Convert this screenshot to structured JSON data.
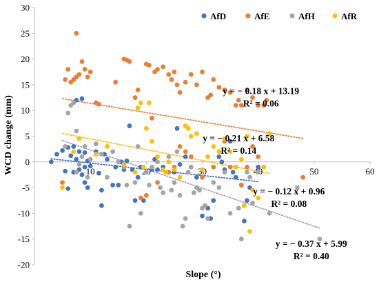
{
  "chart_data": {
    "type": "scatter",
    "xlabel": "Slope (°)",
    "ylabel": "WCD change (mm)",
    "xlim": [
      0,
      60
    ],
    "ylim": [
      -20,
      30
    ],
    "xticks": [
      0,
      10,
      20,
      30,
      40,
      50,
      60
    ],
    "yticks": [
      -20,
      -15,
      -10,
      -5,
      0,
      5,
      10,
      15,
      20,
      25,
      30
    ],
    "grid": false,
    "legend_position": "top-right",
    "series": [
      {
        "name": "AfD",
        "color": "#4472c4",
        "points": [
          [
            3,
            0
          ],
          [
            4,
            1.5
          ],
          [
            5,
            2.2
          ],
          [
            5.5,
            -1.8
          ],
          [
            6,
            2.8
          ],
          [
            6,
            -5.2
          ],
          [
            6.5,
            1.2
          ],
          [
            7,
            3
          ],
          [
            7,
            -2
          ],
          [
            7.5,
            0.5
          ],
          [
            7.5,
            12
          ],
          [
            8,
            2
          ],
          [
            8,
            -1.5
          ],
          [
            8.5,
            -2.5
          ],
          [
            8.5,
            12.3
          ],
          [
            9,
            -4
          ],
          [
            9,
            1.8
          ],
          [
            9,
            -1
          ],
          [
            9.5,
            -5
          ],
          [
            9.5,
            0.2
          ],
          [
            10,
            -0.8
          ],
          [
            11,
            2
          ],
          [
            11.5,
            -2.2
          ],
          [
            12,
            -5.5
          ],
          [
            12,
            -8.5
          ],
          [
            12.5,
            1.5
          ],
          [
            13,
            0.5
          ],
          [
            14,
            -4.5
          ],
          [
            14.5,
            -1
          ],
          [
            15,
            -4.5
          ],
          [
            15.5,
            0
          ],
          [
            16,
            -1.5
          ],
          [
            16.5,
            0.2
          ],
          [
            17,
            7
          ],
          [
            17.5,
            -1.5
          ],
          [
            18,
            -7.5
          ],
          [
            18.5,
            -3
          ],
          [
            19,
            -1
          ],
          [
            19.5,
            -7.5
          ],
          [
            20,
            -2
          ],
          [
            21,
            -1.5
          ],
          [
            21.5,
            0.5
          ],
          [
            22,
            -1.5
          ],
          [
            23,
            -1
          ],
          [
            24,
            -2
          ],
          [
            25,
            -2
          ],
          [
            25.5,
            6.5
          ],
          [
            26,
            -0.5
          ],
          [
            27,
            1
          ],
          [
            28,
            -1
          ],
          [
            29,
            -3
          ],
          [
            30,
            -10.5
          ],
          [
            31,
            -9
          ],
          [
            31.5,
            -11
          ],
          [
            32,
            -7.5
          ],
          [
            33,
            1
          ],
          [
            33.5,
            0
          ],
          [
            34,
            -1.5
          ],
          [
            35,
            4
          ],
          [
            35.5,
            -2
          ],
          [
            36,
            -3
          ],
          [
            37,
            -4.5
          ],
          [
            37.5,
            -11.5
          ],
          [
            38,
            -7.5
          ],
          [
            38.5,
            -5
          ],
          [
            40,
            -1
          ]
        ]
      },
      {
        "name": "AfE",
        "color": "#ed7d31",
        "points": [
          [
            5,
            -4
          ],
          [
            5.5,
            16
          ],
          [
            6,
            18
          ],
          [
            6.5,
            15.5
          ],
          [
            7,
            16
          ],
          [
            7.5,
            25
          ],
          [
            7.5,
            16.5
          ],
          [
            8,
            17
          ],
          [
            8.5,
            19.5
          ],
          [
            9,
            18
          ],
          [
            9.5,
            16.5
          ],
          [
            10,
            17.5
          ],
          [
            11,
            11.5
          ],
          [
            11.5,
            11.2
          ],
          [
            14.5,
            15.5
          ],
          [
            16,
            20
          ],
          [
            16.5,
            19.8
          ],
          [
            17,
            19.5
          ],
          [
            18,
            12.5
          ],
          [
            18.5,
            14
          ],
          [
            20,
            19
          ],
          [
            20.5,
            18.8
          ],
          [
            21,
            8.5
          ],
          [
            21.5,
            17.5
          ],
          [
            22,
            18
          ],
          [
            23,
            18.5
          ],
          [
            24,
            17
          ],
          [
            24.5,
            16
          ],
          [
            25,
            17.5
          ],
          [
            25.5,
            15
          ],
          [
            26,
            13.5
          ],
          [
            27,
            15.5
          ],
          [
            28,
            17
          ],
          [
            29,
            15
          ],
          [
            30,
            17.5
          ],
          [
            31,
            12.5
          ],
          [
            31.5,
            13
          ],
          [
            32,
            16
          ],
          [
            33,
            14.5
          ],
          [
            34,
            14
          ],
          [
            35,
            13.5
          ],
          [
            36,
            11
          ],
          [
            36.5,
            12
          ],
          [
            37,
            11
          ],
          [
            38,
            14
          ],
          [
            39,
            12.5
          ],
          [
            40,
            11
          ],
          [
            41,
            11
          ],
          [
            41.5,
            12
          ],
          [
            19,
            -7
          ],
          [
            20,
            -6.5
          ],
          [
            22,
            -4
          ],
          [
            24,
            -2
          ],
          [
            25,
            -1
          ],
          [
            26,
            3
          ],
          [
            27,
            2
          ],
          [
            28,
            1
          ],
          [
            30,
            -3
          ],
          [
            32,
            -1
          ],
          [
            33,
            2
          ],
          [
            34,
            4
          ],
          [
            35,
            -1
          ],
          [
            37,
            -4.5
          ],
          [
            38,
            -1
          ],
          [
            39,
            3
          ],
          [
            40,
            1
          ],
          [
            41,
            -1
          ],
          [
            48,
            -3
          ]
        ]
      },
      {
        "name": "AfH",
        "color": "#a5a5a5",
        "points": [
          [
            5.5,
            3
          ],
          [
            6,
            9.5
          ],
          [
            6.5,
            11
          ],
          [
            7,
            11.5
          ],
          [
            7.5,
            6
          ],
          [
            7.5,
            -2
          ],
          [
            8,
            -0.5
          ],
          [
            8.5,
            1
          ],
          [
            9,
            3
          ],
          [
            9.5,
            -3
          ],
          [
            10,
            0.5
          ],
          [
            11,
            3.5
          ],
          [
            12,
            1.5
          ],
          [
            13,
            -3
          ],
          [
            14,
            2
          ],
          [
            15,
            0
          ],
          [
            16,
            -1
          ],
          [
            16.5,
            -4.5
          ],
          [
            17,
            -12.5
          ],
          [
            18,
            -4
          ],
          [
            18.5,
            3
          ],
          [
            19,
            -10
          ],
          [
            20,
            -2
          ],
          [
            20.5,
            -4.5
          ],
          [
            21,
            -1
          ],
          [
            22,
            0
          ],
          [
            22.5,
            -5
          ],
          [
            23,
            -6
          ],
          [
            24,
            1
          ],
          [
            24.5,
            -5.5
          ],
          [
            25,
            -4
          ],
          [
            25.5,
            2
          ],
          [
            26,
            -6.5
          ],
          [
            26.5,
            -12.5
          ],
          [
            27,
            -11
          ],
          [
            27.5,
            -2
          ],
          [
            28,
            -1
          ],
          [
            28.5,
            -6
          ],
          [
            29,
            -5
          ],
          [
            29.5,
            -5.5
          ],
          [
            30,
            -9
          ],
          [
            30.5,
            -8.5
          ],
          [
            31,
            -11
          ],
          [
            32,
            -4
          ],
          [
            33,
            -5
          ],
          [
            34,
            -2
          ],
          [
            35,
            -10
          ],
          [
            36,
            -1
          ],
          [
            36.5,
            -9
          ],
          [
            37,
            -15
          ],
          [
            38,
            -2
          ],
          [
            38.5,
            -3
          ],
          [
            39,
            -8
          ],
          [
            40,
            -2
          ],
          [
            41,
            -1
          ],
          [
            42,
            -10
          ],
          [
            47,
            -5
          ],
          [
            51,
            -15
          ]
        ]
      },
      {
        "name": "AfR",
        "color": "#ffc000",
        "points": [
          [
            5,
            -5
          ],
          [
            7,
            2
          ],
          [
            8,
            4.5
          ],
          [
            11,
            1.5
          ],
          [
            13,
            3
          ],
          [
            16,
            -0.5
          ],
          [
            18,
            -2
          ],
          [
            18.5,
            10.5
          ],
          [
            19,
            11.5
          ],
          [
            19.5,
            -1
          ],
          [
            20,
            6.5
          ],
          [
            20.5,
            11.5
          ],
          [
            21,
            4
          ],
          [
            22,
            1
          ],
          [
            23,
            -1.5
          ],
          [
            23.5,
            -2
          ],
          [
            24,
            0
          ],
          [
            25,
            -1.5
          ],
          [
            26,
            -3
          ],
          [
            27,
            7
          ],
          [
            27.5,
            6.5
          ],
          [
            28,
            5
          ],
          [
            29,
            5.5
          ],
          [
            30,
            -1.5
          ],
          [
            31,
            1
          ],
          [
            32,
            3
          ],
          [
            33,
            2
          ],
          [
            34,
            4.5
          ],
          [
            35,
            2
          ],
          [
            36,
            -1
          ],
          [
            37,
            0.5
          ],
          [
            37.5,
            -8.5
          ],
          [
            38,
            5
          ],
          [
            38.5,
            -13.5
          ],
          [
            39,
            -5.5
          ],
          [
            40,
            -7
          ],
          [
            41,
            -1
          ],
          [
            42,
            5.5
          ]
        ]
      }
    ],
    "trendlines": [
      {
        "series": "AfE",
        "color": "#ed7d31",
        "slope": -0.18,
        "intercept": 13.19,
        "x_range": [
          5,
          48
        ]
      },
      {
        "series": "AfR",
        "color": "#ffc000",
        "slope": -0.21,
        "intercept": 6.58,
        "x_range": [
          5,
          42
        ]
      },
      {
        "series": "AfD",
        "color": "#4472c4",
        "slope": -0.12,
        "intercept": 0.96,
        "x_range": [
          3,
          40
        ]
      },
      {
        "series": "AfH",
        "color": "#a5a5a5",
        "slope": -0.37,
        "intercept": 5.99,
        "x_range": [
          5,
          51
        ]
      }
    ],
    "annotations": [
      {
        "eq": "y = − 0.18 x + 13.19",
        "r2": "R² = 0.06",
        "x": 40.5,
        "y": 13.2
      },
      {
        "eq": "y = − 0.21 x + 6.58",
        "r2": "R² = 0.14",
        "x": 36.5,
        "y": 4.0
      },
      {
        "eq": "y = − 0.12 x + 0.96",
        "r2": "R² = 0.08",
        "x": 45.5,
        "y": -6.3
      },
      {
        "eq": "y = − 0.37 x + 5.99",
        "r2": "R² = 0.40",
        "x": 49.5,
        "y": -16.5
      }
    ]
  }
}
